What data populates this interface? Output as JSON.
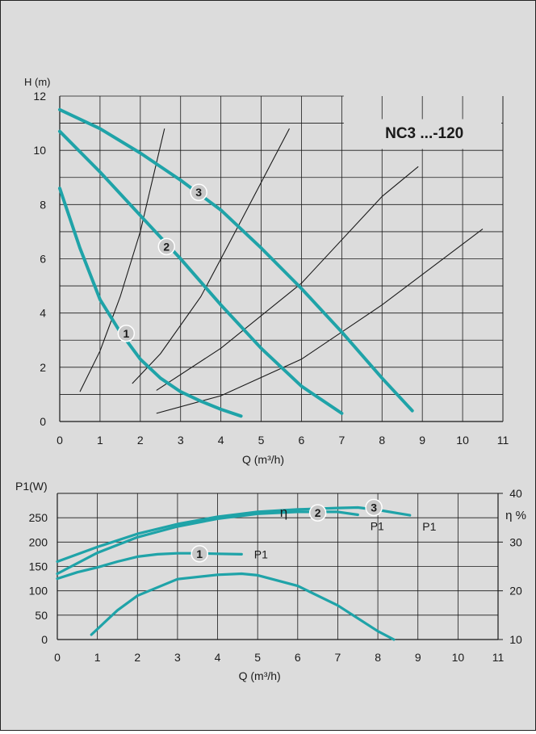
{
  "colors": {
    "curve": "#1fa3a8",
    "background": "#dcdcdc",
    "grid": "#1a1a1a",
    "system_curve": "#1a1a1a"
  },
  "chart_data": [
    {
      "type": "line",
      "title": "NC3 ...-120",
      "ylabel": "H (m)",
      "xlabel": "Q (m³/h)",
      "xlim": [
        0,
        11
      ],
      "ylim": [
        0,
        12
      ],
      "x_ticks": [
        "0",
        "1",
        "2",
        "3",
        "4",
        "5",
        "6",
        "7",
        "8",
        "9",
        "10",
        "11"
      ],
      "y_ticks": [
        "0",
        "2",
        "4",
        "6",
        "8",
        "10",
        "12"
      ],
      "grid": true,
      "series": [
        {
          "name": "1",
          "points": [
            [
              0,
              8.6
            ],
            [
              0.5,
              6.4
            ],
            [
              1,
              4.5
            ],
            [
              1.5,
              3.3
            ],
            [
              2,
              2.3
            ],
            [
              2.5,
              1.6
            ],
            [
              3,
              1.1
            ],
            [
              3.5,
              0.75
            ],
            [
              4,
              0.45
            ],
            [
              4.5,
              0.2
            ]
          ]
        },
        {
          "name": "2",
          "points": [
            [
              0,
              10.7
            ],
            [
              1,
              9.2
            ],
            [
              2,
              7.6
            ],
            [
              3,
              6.0
            ],
            [
              4,
              4.3
            ],
            [
              5,
              2.7
            ],
            [
              6,
              1.3
            ],
            [
              7,
              0.3
            ]
          ]
        },
        {
          "name": "3",
          "points": [
            [
              0,
              11.5
            ],
            [
              1,
              10.8
            ],
            [
              2,
              9.9
            ],
            [
              3,
              8.9
            ],
            [
              4,
              7.8
            ],
            [
              5,
              6.4
            ],
            [
              6,
              4.9
            ],
            [
              7,
              3.3
            ],
            [
              8,
              1.6
            ],
            [
              8.75,
              0.4
            ]
          ]
        }
      ],
      "system_curves": [
        {
          "points": [
            [
              0.5,
              1.1
            ],
            [
              1,
              2.6
            ],
            [
              1.5,
              4.6
            ],
            [
              2,
              7.0
            ],
            [
              2.6,
              10.8
            ]
          ]
        },
        {
          "points": [
            [
              1.8,
              1.4
            ],
            [
              2.5,
              2.5
            ],
            [
              3.5,
              4.6
            ],
            [
              4.5,
              7.4
            ],
            [
              5.7,
              10.8
            ]
          ]
        },
        {
          "points": [
            [
              2.4,
              1.15
            ],
            [
              4,
              2.7
            ],
            [
              6,
              5.1
            ],
            [
              8,
              8.3
            ],
            [
              8.9,
              9.4
            ]
          ]
        },
        {
          "points": [
            [
              2.4,
              0.3
            ],
            [
              4,
              0.95
            ],
            [
              6,
              2.3
            ],
            [
              8,
              4.3
            ],
            [
              10.5,
              7.1
            ]
          ]
        }
      ]
    },
    {
      "type": "line",
      "ylabel": "P1(W)",
      "y2label": "η %",
      "xlabel": "Q (m³/h)",
      "xlim": [
        0,
        11
      ],
      "ylim": [
        0,
        300
      ],
      "y2lim": [
        10,
        40
      ],
      "x_ticks": [
        "0",
        "1",
        "2",
        "3",
        "4",
        "5",
        "6",
        "7",
        "8",
        "9",
        "10",
        "11"
      ],
      "y_ticks": [
        "0",
        "50",
        "100",
        "150",
        "200",
        "250"
      ],
      "y2_ticks": [
        "10",
        "20",
        "30",
        "40"
      ],
      "grid": true,
      "series": [
        {
          "name": "1",
          "label": "P1",
          "points": [
            [
              0,
              125
            ],
            [
              0.5,
              138
            ],
            [
              1,
              148
            ],
            [
              1.5,
              160
            ],
            [
              2,
              170
            ],
            [
              2.5,
              175
            ],
            [
              3,
              177
            ],
            [
              3.5,
              177
            ],
            [
              4,
              176
            ],
            [
              4.6,
              175
            ]
          ]
        },
        {
          "name": "2",
          "label": "P1",
          "points": [
            [
              0,
              135
            ],
            [
              1,
              178
            ],
            [
              2,
              210
            ],
            [
              3,
              232
            ],
            [
              4,
              248
            ],
            [
              5,
              258
            ],
            [
              6,
              262
            ],
            [
              7,
              262
            ],
            [
              7.5,
              256
            ]
          ]
        },
        {
          "name": "3",
          "label": "P1",
          "points": [
            [
              0,
              160
            ],
            [
              1,
              190
            ],
            [
              2,
              217
            ],
            [
              3,
              237
            ],
            [
              4,
              252
            ],
            [
              5,
              262
            ],
            [
              6,
              267
            ],
            [
              7,
              270
            ],
            [
              7.5,
              271
            ],
            [
              8,
              266
            ],
            [
              8.8,
              255
            ]
          ]
        },
        {
          "name": "η",
          "axis": "right",
          "points": [
            [
              0.85,
              11
            ],
            [
              1.5,
              16
            ],
            [
              2,
              19
            ],
            [
              3,
              22.4
            ],
            [
              4,
              23.3
            ],
            [
              4.6,
              23.5
            ],
            [
              5,
              23.2
            ],
            [
              6,
              21
            ],
            [
              7,
              17
            ],
            [
              8,
              11.7
            ],
            [
              8.4,
              10
            ]
          ]
        }
      ]
    }
  ]
}
